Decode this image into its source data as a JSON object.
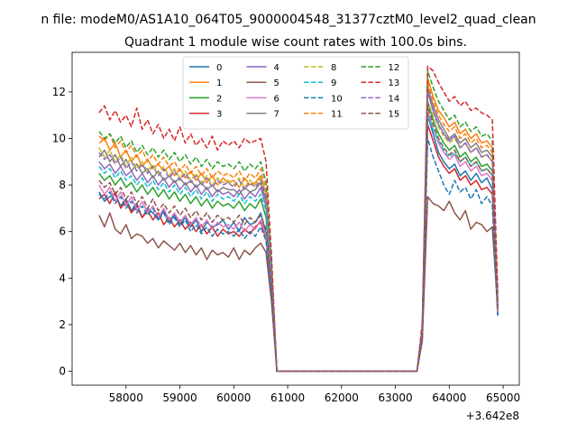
{
  "chart_data": {
    "type": "line",
    "suptitle": "n file: modeM0/AS1A10_064T05_9000004548_31377cztM0_level2_quad_clean",
    "title": "Quadrant 1 module wise count rates with 100.0s bins.",
    "xlabel": "",
    "ylabel": "",
    "x_offset_text": "+3.642e8",
    "xlim": [
      57000,
      65300
    ],
    "ylim": [
      -0.6,
      13.7
    ],
    "xticks": [
      58000,
      59000,
      60000,
      61000,
      62000,
      63000,
      64000,
      65000
    ],
    "yticks": [
      0,
      2,
      4,
      6,
      8,
      10,
      12
    ],
    "legend_position": "top-center",
    "x": [
      57500,
      57600,
      57700,
      57800,
      57900,
      58000,
      58100,
      58200,
      58300,
      58400,
      58500,
      58600,
      58700,
      58800,
      58900,
      59000,
      59100,
      59200,
      59300,
      59400,
      59500,
      59600,
      59700,
      59800,
      59900,
      60000,
      60100,
      60200,
      60300,
      60400,
      60500,
      60600,
      60700,
      60800,
      63400,
      63500,
      63600,
      63700,
      63800,
      63900,
      64000,
      64100,
      64200,
      64300,
      64400,
      64500,
      64600,
      64700,
      64800,
      64900
    ],
    "series": [
      {
        "name": "0",
        "color": "#1f77b4",
        "dash": "solid",
        "values": [
          7.7,
          7.3,
          7.5,
          7.6,
          7.1,
          7.4,
          6.9,
          7.2,
          6.6,
          7.0,
          6.8,
          6.5,
          6.9,
          6.4,
          6.7,
          6.3,
          6.6,
          6.2,
          6.5,
          6.0,
          6.4,
          6.2,
          6.3,
          6.5,
          6.1,
          6.4,
          6.0,
          6.6,
          6.3,
          6.4,
          6.8,
          5.9,
          3.5,
          0,
          0,
          1.5,
          11.0,
          10.2,
          9.4,
          9.0,
          8.7,
          8.9,
          8.4,
          8.6,
          8.2,
          8.5,
          8.1,
          8.3,
          7.8,
          2.4
        ]
      },
      {
        "name": "1",
        "color": "#ff7f0e",
        "dash": "solid",
        "values": [
          9.8,
          10.0,
          9.5,
          9.8,
          9.2,
          9.5,
          9.0,
          9.3,
          8.8,
          9.1,
          8.7,
          8.9,
          8.6,
          8.8,
          8.4,
          8.7,
          8.3,
          8.6,
          8.2,
          8.5,
          8.1,
          8.4,
          8.0,
          8.3,
          8.1,
          8.2,
          7.9,
          8.3,
          8.0,
          8.1,
          8.4,
          7.6,
          4.3,
          0,
          0,
          1.8,
          12.6,
          11.8,
          11.2,
          10.9,
          10.5,
          10.7,
          10.2,
          10.4,
          10.0,
          10.2,
          9.8,
          9.9,
          9.6,
          3.0
        ]
      },
      {
        "name": "2",
        "color": "#2ca02c",
        "dash": "solid",
        "values": [
          8.5,
          8.2,
          8.4,
          8.0,
          8.3,
          7.9,
          8.1,
          7.7,
          8.0,
          7.6,
          7.9,
          7.5,
          7.8,
          7.4,
          7.7,
          7.3,
          7.6,
          7.2,
          7.5,
          7.1,
          7.4,
          7.0,
          7.3,
          7.1,
          7.2,
          7.0,
          7.3,
          6.9,
          7.2,
          7.0,
          7.4,
          6.6,
          3.8,
          0,
          0,
          1.6,
          11.6,
          10.8,
          10.2,
          9.8,
          9.5,
          9.7,
          9.2,
          9.4,
          9.0,
          9.2,
          8.8,
          8.9,
          8.6,
          2.7
        ]
      },
      {
        "name": "3",
        "color": "#d62728",
        "dash": "solid",
        "values": [
          7.4,
          7.6,
          7.2,
          7.7,
          7.0,
          7.3,
          6.8,
          7.1,
          6.6,
          6.9,
          6.5,
          6.8,
          6.3,
          6.6,
          6.2,
          6.5,
          6.1,
          6.4,
          6.0,
          6.3,
          5.9,
          6.2,
          5.8,
          6.1,
          5.9,
          6.0,
          5.8,
          6.1,
          5.9,
          6.2,
          6.4,
          5.7,
          3.4,
          0,
          0,
          1.4,
          10.6,
          9.9,
          9.2,
          8.8,
          8.5,
          8.7,
          8.2,
          8.4,
          8.0,
          8.2,
          7.8,
          7.9,
          7.6,
          2.4
        ]
      },
      {
        "name": "4",
        "color": "#9467bd",
        "dash": "solid",
        "values": [
          9.0,
          8.7,
          8.9,
          8.5,
          8.8,
          8.4,
          8.6,
          8.2,
          8.5,
          8.1,
          8.4,
          8.0,
          8.3,
          7.9,
          8.2,
          7.8,
          8.1,
          7.7,
          8.0,
          7.6,
          7.9,
          7.5,
          7.8,
          7.6,
          7.7,
          7.5,
          7.8,
          7.4,
          7.7,
          7.5,
          7.9,
          7.1,
          4.0,
          0,
          0,
          1.7,
          12.0,
          11.2,
          10.6,
          10.2,
          9.9,
          10.1,
          9.6,
          9.8,
          9.4,
          9.6,
          9.2,
          9.3,
          9.0,
          2.8
        ]
      },
      {
        "name": "5",
        "color": "#8c564b",
        "dash": "solid",
        "values": [
          6.7,
          6.2,
          6.8,
          6.1,
          5.9,
          6.3,
          5.7,
          5.9,
          5.8,
          5.5,
          5.7,
          5.3,
          5.6,
          5.4,
          5.2,
          5.5,
          5.1,
          5.4,
          5.0,
          5.3,
          4.8,
          5.2,
          5.0,
          5.1,
          4.9,
          5.3,
          4.8,
          5.2,
          5.0,
          5.3,
          5.5,
          5.1,
          3.0,
          0,
          0,
          1.3,
          7.5,
          7.2,
          7.1,
          6.9,
          7.3,
          6.8,
          6.5,
          6.9,
          6.1,
          6.4,
          6.3,
          6.0,
          6.2,
          2.6
        ]
      },
      {
        "name": "6",
        "color": "#e377c2",
        "dash": "solid",
        "values": [
          8.0,
          7.6,
          7.9,
          7.3,
          7.7,
          7.1,
          7.5,
          6.9,
          7.3,
          6.8,
          7.1,
          6.6,
          7.0,
          6.5,
          6.8,
          6.4,
          6.7,
          6.3,
          6.6,
          6.2,
          6.5,
          6.1,
          6.4,
          6.2,
          6.3,
          6.1,
          6.4,
          6.0,
          6.3,
          6.1,
          6.5,
          5.8,
          3.5,
          0,
          0,
          1.5,
          11.2,
          10.4,
          9.8,
          9.4,
          9.1,
          9.3,
          8.8,
          9.0,
          8.6,
          8.8,
          8.4,
          8.5,
          8.2,
          2.5
        ]
      },
      {
        "name": "7",
        "color": "#7f7f7f",
        "dash": "solid",
        "values": [
          9.2,
          9.5,
          9.0,
          9.3,
          8.8,
          9.1,
          8.6,
          8.9,
          8.5,
          8.7,
          8.3,
          8.6,
          8.2,
          8.4,
          8.1,
          8.3,
          8.0,
          8.2,
          7.9,
          8.1,
          7.8,
          8.0,
          7.7,
          7.9,
          7.8,
          7.8,
          7.6,
          7.9,
          7.7,
          7.8,
          8.1,
          7.3,
          4.1,
          0,
          0,
          1.7,
          12.2,
          11.4,
          10.8,
          10.4,
          10.0,
          10.2,
          9.8,
          10.0,
          9.6,
          9.8,
          9.4,
          9.5,
          9.2,
          2.9
        ]
      },
      {
        "name": "8",
        "color": "#bcbd22",
        "dash": "dashed",
        "values": [
          9.6,
          9.2,
          9.5,
          9.0,
          9.3,
          8.8,
          9.2,
          8.7,
          9.0,
          8.6,
          8.9,
          8.5,
          8.8,
          8.4,
          8.7,
          8.3,
          8.6,
          8.2,
          8.5,
          8.1,
          8.4,
          8.0,
          8.3,
          8.1,
          8.2,
          8.0,
          8.3,
          7.9,
          8.2,
          8.0,
          8.3,
          7.6,
          4.2,
          0,
          0,
          1.7,
          11.6,
          11.0,
          10.5,
          10.1,
          9.8,
          10.0,
          9.6,
          9.8,
          9.4,
          9.6,
          9.2,
          9.3,
          9.0,
          2.9
        ]
      },
      {
        "name": "9",
        "color": "#17becf",
        "dash": "dashed",
        "values": [
          8.8,
          8.5,
          8.7,
          8.3,
          8.6,
          8.2,
          8.4,
          8.0,
          8.3,
          7.9,
          8.2,
          7.8,
          8.1,
          7.7,
          8.0,
          7.6,
          7.9,
          7.5,
          7.8,
          7.4,
          7.7,
          7.3,
          7.6,
          7.4,
          7.5,
          7.3,
          7.6,
          7.2,
          7.5,
          7.3,
          7.6,
          6.9,
          3.9,
          0,
          0,
          1.6,
          11.0,
          10.4,
          9.9,
          9.5,
          9.2,
          9.4,
          9.0,
          9.2,
          8.8,
          9.0,
          8.6,
          8.7,
          8.4,
          2.7
        ]
      },
      {
        "name": "10",
        "color": "#1f77b4",
        "dash": "dashed",
        "values": [
          7.6,
          7.4,
          7.7,
          7.2,
          7.5,
          7.0,
          7.3,
          6.8,
          7.1,
          6.7,
          7.0,
          6.5,
          6.8,
          6.3,
          6.6,
          6.2,
          6.5,
          6.0,
          6.3,
          5.9,
          6.2,
          5.8,
          6.1,
          5.9,
          6.0,
          5.8,
          6.1,
          5.7,
          6.0,
          5.8,
          6.2,
          5.6,
          3.3,
          0,
          0,
          1.4,
          10.0,
          9.2,
          8.6,
          8.0,
          7.6,
          8.2,
          7.7,
          7.9,
          7.4,
          7.8,
          7.2,
          7.5,
          7.1,
          2.4
        ]
      },
      {
        "name": "11",
        "color": "#ff7f0e",
        "dash": "dashed",
        "values": [
          10.1,
          9.9,
          10.2,
          9.6,
          9.9,
          9.4,
          9.7,
          9.2,
          9.5,
          9.0,
          9.3,
          8.9,
          9.2,
          8.8,
          9.0,
          8.6,
          8.9,
          8.5,
          8.8,
          8.4,
          8.7,
          8.3,
          8.6,
          8.4,
          8.5,
          8.3,
          8.6,
          8.2,
          8.5,
          8.3,
          8.7,
          7.8,
          4.4,
          0,
          0,
          1.8,
          12.4,
          11.6,
          11.0,
          10.6,
          10.3,
          10.5,
          10.0,
          10.2,
          9.8,
          10.0,
          9.6,
          9.7,
          9.4,
          3.0
        ]
      },
      {
        "name": "12",
        "color": "#2ca02c",
        "dash": "dashed",
        "values": [
          10.3,
          10.0,
          10.2,
          9.8,
          10.1,
          9.6,
          9.9,
          9.4,
          9.7,
          9.3,
          9.6,
          9.2,
          9.5,
          9.1,
          9.4,
          9.0,
          9.3,
          8.9,
          9.2,
          8.8,
          9.1,
          8.7,
          9.0,
          8.8,
          8.9,
          8.7,
          9.0,
          8.6,
          8.9,
          8.7,
          9.0,
          8.1,
          4.6,
          0,
          0,
          1.9,
          12.9,
          12.2,
          11.6,
          11.2,
          10.8,
          11.0,
          10.5,
          10.7,
          10.3,
          10.5,
          10.1,
          10.2,
          9.9,
          3.1
        ]
      },
      {
        "name": "13",
        "color": "#d62728",
        "dash": "dashed",
        "values": [
          11.1,
          11.4,
          10.8,
          11.2,
          10.7,
          11.0,
          10.5,
          11.3,
          10.4,
          10.8,
          10.2,
          10.6,
          10.0,
          10.4,
          9.9,
          10.5,
          9.8,
          10.2,
          9.7,
          10.0,
          9.6,
          10.1,
          9.5,
          9.9,
          9.7,
          9.9,
          9.6,
          10.0,
          9.8,
          9.9,
          10.0,
          9.0,
          5.0,
          0,
          0,
          2.1,
          13.1,
          12.9,
          12.4,
          12.0,
          11.6,
          11.8,
          11.4,
          11.6,
          11.2,
          11.3,
          11.1,
          11.0,
          10.8,
          3.4
        ]
      },
      {
        "name": "14",
        "color": "#9467bd",
        "dash": "dashed",
        "values": [
          9.4,
          9.1,
          9.3,
          8.9,
          9.2,
          8.7,
          9.0,
          8.6,
          8.9,
          8.5,
          8.8,
          8.4,
          8.7,
          8.3,
          8.6,
          8.2,
          8.5,
          8.1,
          8.4,
          8.0,
          8.3,
          7.9,
          8.2,
          8.0,
          8.1,
          7.9,
          8.2,
          7.8,
          8.1,
          7.9,
          8.2,
          7.5,
          4.1,
          0,
          0,
          1.7,
          12.0,
          11.2,
          10.6,
          10.2,
          9.9,
          10.1,
          9.6,
          9.8,
          9.4,
          9.6,
          9.2,
          9.3,
          9.0,
          2.8
        ]
      },
      {
        "name": "15",
        "color": "#8c564b",
        "dash": "dashed",
        "values": [
          8.2,
          7.9,
          8.1,
          7.6,
          7.9,
          7.4,
          7.7,
          7.2,
          7.5,
          7.0,
          7.4,
          6.9,
          7.2,
          6.8,
          7.1,
          6.7,
          7.0,
          6.6,
          6.9,
          6.5,
          6.8,
          6.4,
          6.7,
          6.5,
          6.6,
          6.4,
          6.7,
          6.3,
          6.6,
          6.4,
          6.7,
          6.1,
          3.6,
          0,
          0,
          1.5,
          11.4,
          10.6,
          10.0,
          9.6,
          9.3,
          9.5,
          9.0,
          9.2,
          8.8,
          9.0,
          8.6,
          8.7,
          8.4,
          2.6
        ]
      }
    ]
  }
}
